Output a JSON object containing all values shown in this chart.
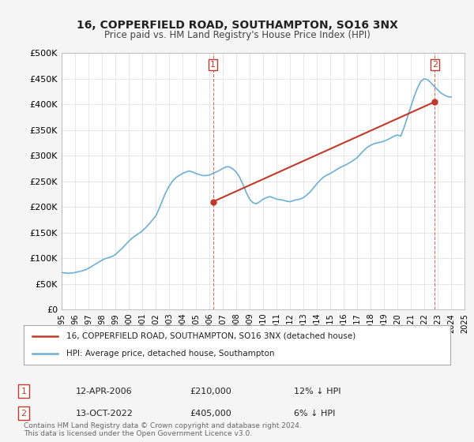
{
  "title": "16, COPPERFIELD ROAD, SOUTHAMPTON, SO16 3NX",
  "subtitle": "Price paid vs. HM Land Registry's House Price Index (HPI)",
  "ylabel": "",
  "ylim": [
    0,
    500000
  ],
  "yticks": [
    0,
    50000,
    100000,
    150000,
    200000,
    250000,
    300000,
    350000,
    400000,
    450000,
    500000
  ],
  "ytick_labels": [
    "£0",
    "£50K",
    "£100K",
    "£150K",
    "£200K",
    "£250K",
    "£300K",
    "£350K",
    "£400K",
    "£450K",
    "£500K"
  ],
  "hpi_color": "#6dafd6",
  "price_color": "#c0392b",
  "marker_color": "#c0392b",
  "background_color": "#f5f5f5",
  "plot_bg_color": "#ffffff",
  "grid_color": "#dddddd",
  "transaction1": {
    "date": "12-APR-2006",
    "price": 210000,
    "label": "1",
    "hpi_diff": "12% ↓ HPI"
  },
  "transaction2": {
    "date": "13-OCT-2022",
    "price": 405000,
    "label": "2",
    "hpi_diff": "6% ↓ HPI"
  },
  "legend_line1": "16, COPPERFIELD ROAD, SOUTHAMPTON, SO16 3NX (detached house)",
  "legend_line2": "HPI: Average price, detached house, Southampton",
  "footer": "Contains HM Land Registry data © Crown copyright and database right 2024.\nThis data is licensed under the Open Government Licence v3.0.",
  "hpi_data": {
    "years": [
      1995.0,
      1995.25,
      1995.5,
      1995.75,
      1996.0,
      1996.25,
      1996.5,
      1996.75,
      1997.0,
      1997.25,
      1997.5,
      1997.75,
      1998.0,
      1998.25,
      1998.5,
      1998.75,
      1999.0,
      1999.25,
      1999.5,
      1999.75,
      2000.0,
      2000.25,
      2000.5,
      2000.75,
      2001.0,
      2001.25,
      2001.5,
      2001.75,
      2002.0,
      2002.25,
      2002.5,
      2002.75,
      2003.0,
      2003.25,
      2003.5,
      2003.75,
      2004.0,
      2004.25,
      2004.5,
      2004.75,
      2005.0,
      2005.25,
      2005.5,
      2005.75,
      2006.0,
      2006.25,
      2006.5,
      2006.75,
      2007.0,
      2007.25,
      2007.5,
      2007.75,
      2008.0,
      2008.25,
      2008.5,
      2008.75,
      2009.0,
      2009.25,
      2009.5,
      2009.75,
      2010.0,
      2010.25,
      2010.5,
      2010.75,
      2011.0,
      2011.25,
      2011.5,
      2011.75,
      2012.0,
      2012.25,
      2012.5,
      2012.75,
      2013.0,
      2013.25,
      2013.5,
      2013.75,
      2014.0,
      2014.25,
      2014.5,
      2014.75,
      2015.0,
      2015.25,
      2015.5,
      2015.75,
      2016.0,
      2016.25,
      2016.5,
      2016.75,
      2017.0,
      2017.25,
      2017.5,
      2017.75,
      2018.0,
      2018.25,
      2018.5,
      2018.75,
      2019.0,
      2019.25,
      2019.5,
      2019.75,
      2020.0,
      2020.25,
      2020.5,
      2020.75,
      2021.0,
      2021.25,
      2021.5,
      2021.75,
      2022.0,
      2022.25,
      2022.5,
      2022.75,
      2023.0,
      2023.25,
      2023.5,
      2023.75,
      2024.0
    ],
    "values": [
      72000,
      71000,
      70500,
      71000,
      72000,
      73500,
      75000,
      77000,
      80000,
      84000,
      88000,
      92000,
      96000,
      99000,
      101000,
      103000,
      107000,
      113000,
      119000,
      126000,
      133000,
      139000,
      144000,
      148000,
      153000,
      159000,
      166000,
      174000,
      182000,
      196000,
      212000,
      228000,
      240000,
      250000,
      257000,
      261000,
      265000,
      268000,
      270000,
      268000,
      265000,
      263000,
      261000,
      261000,
      262000,
      265000,
      268000,
      271000,
      275000,
      278000,
      278000,
      274000,
      268000,
      258000,
      244000,
      228000,
      215000,
      208000,
      206000,
      210000,
      215000,
      218000,
      220000,
      218000,
      215000,
      214000,
      213000,
      211000,
      210000,
      212000,
      214000,
      215000,
      218000,
      223000,
      229000,
      237000,
      245000,
      252000,
      258000,
      262000,
      265000,
      269000,
      273000,
      277000,
      280000,
      283000,
      287000,
      291000,
      296000,
      303000,
      310000,
      316000,
      320000,
      323000,
      325000,
      326000,
      328000,
      331000,
      334000,
      338000,
      340000,
      338000,
      355000,
      375000,
      395000,
      415000,
      432000,
      445000,
      450000,
      448000,
      442000,
      435000,
      428000,
      422000,
      418000,
      415000,
      414000
    ]
  },
  "price_data": {
    "years": [
      2006.27,
      2022.79
    ],
    "values": [
      210000,
      405000
    ]
  }
}
